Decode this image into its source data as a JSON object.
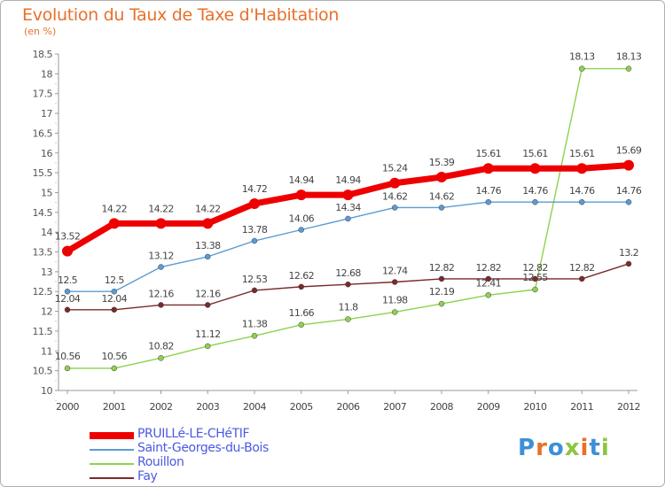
{
  "title": "Evolution du Taux de Taxe d'Habitation",
  "subtitle": "(en %)",
  "logo": {
    "text": "Proxiti",
    "colors": [
      "#3d8fd8",
      "#e8702a",
      "#3d8fd8",
      "#8cc63f",
      "#e8702a",
      "#3d8fd8",
      "#8cc63f"
    ]
  },
  "chart_data": {
    "type": "line",
    "title": "Evolution du Taux de Taxe d'Habitation",
    "subtitle": "(en %)",
    "xlabel": "",
    "ylabel": "",
    "x": [
      "2000",
      "2001",
      "2002",
      "2003",
      "2004",
      "2005",
      "2006",
      "2007",
      "2008",
      "2009",
      "2010",
      "2011",
      "2012"
    ],
    "ylim": [
      10,
      18.5
    ],
    "yticks": [
      "10",
      "10.5",
      "11",
      "11.5",
      "12",
      "12.5",
      "13",
      "13.5",
      "14",
      "14.5",
      "15",
      "15.5",
      "16",
      "16.5",
      "17",
      "17.5",
      "18",
      "18.5"
    ],
    "grid": false,
    "legend_position": "bottom-left",
    "series": [
      {
        "name": "PRUILLé-LE-CHéTIF",
        "color": "#ee0000",
        "values": [
          13.52,
          14.22,
          14.22,
          14.22,
          14.72,
          14.94,
          14.94,
          15.24,
          15.39,
          15.61,
          15.61,
          15.61,
          15.69
        ],
        "labels": [
          "13.52",
          "14.22",
          "14.22",
          "14.22",
          "14.72",
          "14.94",
          "14.94",
          "15.24",
          "15.39",
          "15.61",
          "15.61",
          "15.61",
          "15.69"
        ]
      },
      {
        "name": "Saint-Georges-du-Bois",
        "color": "#5b9bd5",
        "values": [
          12.5,
          12.5,
          13.12,
          13.38,
          13.78,
          14.06,
          14.34,
          14.62,
          14.62,
          14.76,
          14.76,
          14.76,
          14.76
        ],
        "labels": [
          "12.5",
          "12.5",
          "13.12",
          "13.38",
          "13.78",
          "14.06",
          "14.34",
          "14.62",
          "14.62",
          "14.76",
          "14.76",
          "14.76",
          "14.76"
        ]
      },
      {
        "name": "Rouillon",
        "color": "#8fd14f",
        "values": [
          10.56,
          10.56,
          10.82,
          11.12,
          11.38,
          11.66,
          11.8,
          11.98,
          12.19,
          12.41,
          12.55,
          18.13,
          18.13
        ],
        "labels": [
          "10.56",
          "10.56",
          "10.82",
          "11.12",
          "11.38",
          "11.66",
          "11.8",
          "11.98",
          "12.19",
          "12.41",
          "12.55",
          "18.13",
          "18.13"
        ]
      },
      {
        "name": "Fay",
        "color": "#7a2a2a",
        "values": [
          12.04,
          12.04,
          12.16,
          12.16,
          12.53,
          12.62,
          12.68,
          12.74,
          12.82,
          12.82,
          12.82,
          12.82,
          13.2
        ],
        "labels": [
          "12.04",
          "12.04",
          "12.16",
          "12.16",
          "12.53",
          "12.62",
          "12.68",
          "12.74",
          "12.82",
          "12.82",
          "12.82",
          "12.82",
          "13.2"
        ]
      }
    ]
  },
  "legend": [
    {
      "label": "PRUILLé-LE-CHéTIF",
      "color": "#ee0000",
      "thick": true
    },
    {
      "label": "Saint-Georges-du-Bois",
      "color": "#5b9bd5",
      "thick": false
    },
    {
      "label": "Rouillon",
      "color": "#8fd14f",
      "thick": false
    },
    {
      "label": "Fay",
      "color": "#7a2a2a",
      "thick": false
    }
  ]
}
